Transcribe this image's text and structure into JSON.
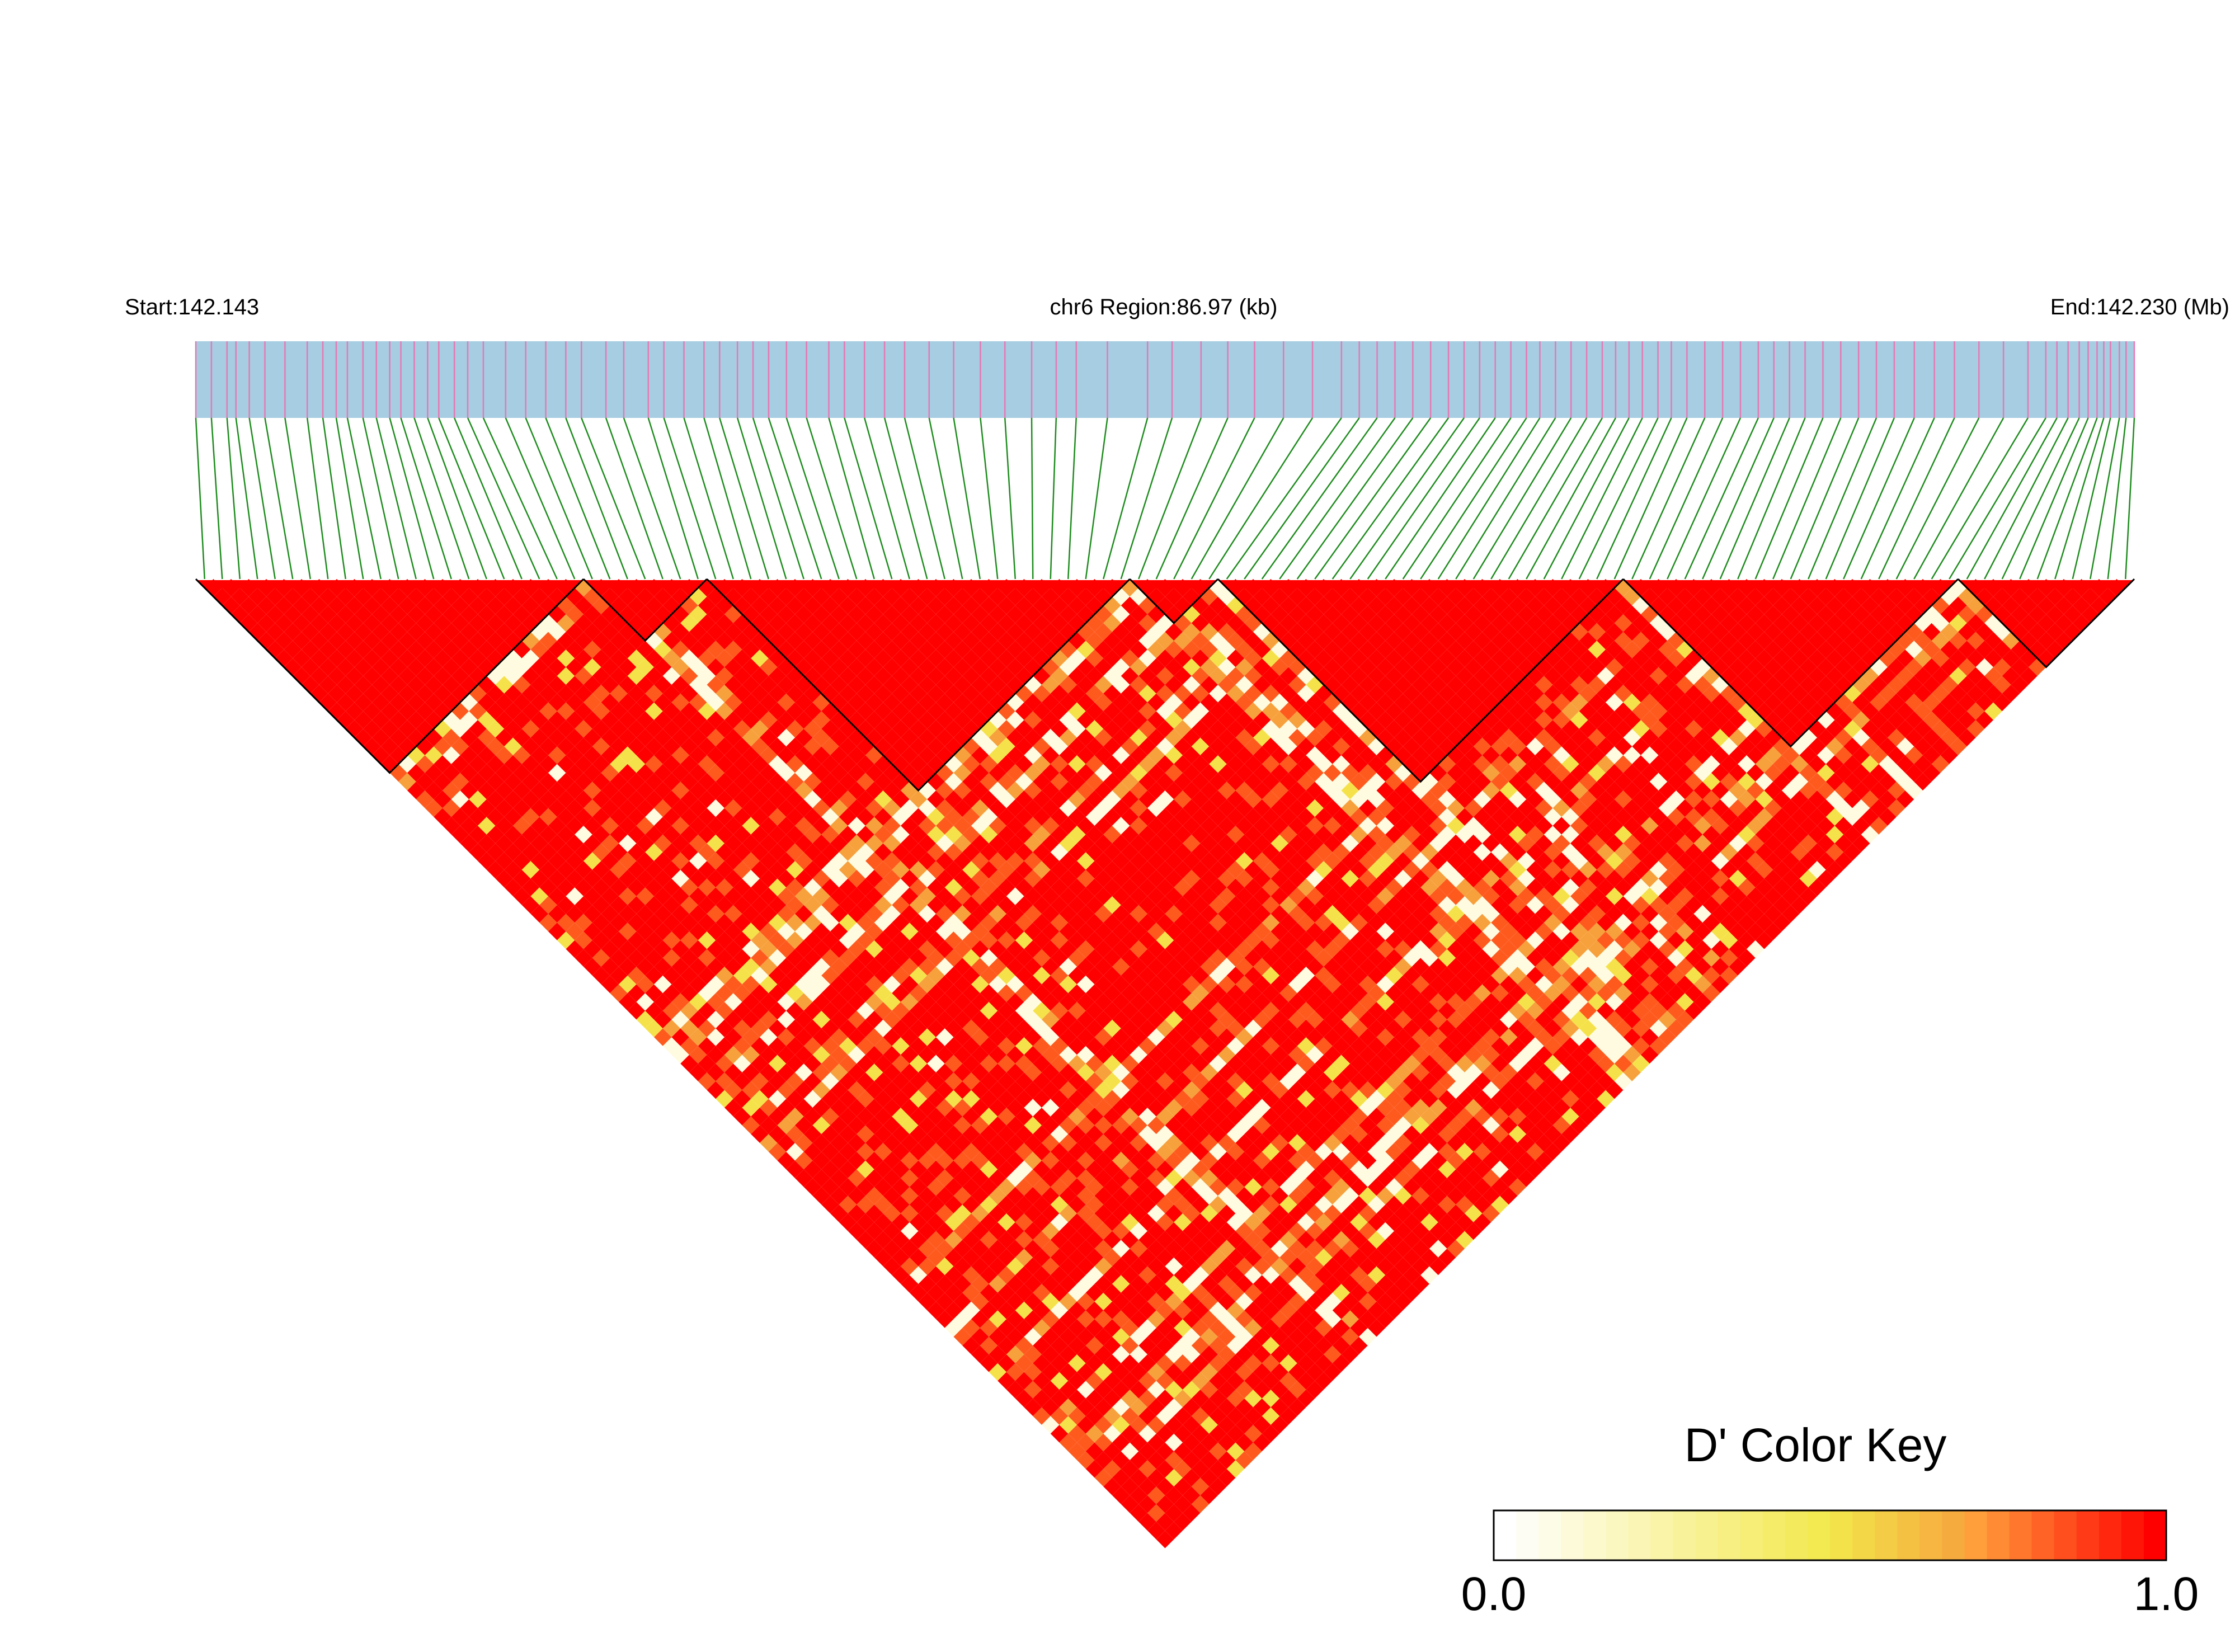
{
  "header": {
    "start_label": "Start:142.143",
    "region_label": "chr6 Region:86.97 (kb)",
    "end_label": "End:142.230 (Mb)"
  },
  "legend": {
    "title": "D' Color Key",
    "min_label": "0.0",
    "max_label": "1.0",
    "gradient_colors": [
      "#ffffff",
      "#f3e84a",
      "#f7a13d",
      "#ff0000"
    ]
  },
  "colors": {
    "track_bg": "#a6cde2",
    "snp_tick": "#e678b4",
    "connector": "#1e8c1e",
    "ld_high": "#ff0000",
    "ld_mid": "#ff5a1e",
    "ld_orange": "#f7a13d",
    "ld_yellow": "#f5e24a",
    "ld_white": "#fffbe0",
    "block_outline": "#000000"
  },
  "chart_data": {
    "type": "heatmap",
    "title": "",
    "chromosome": "chr6",
    "region_start_mb": 142.143,
    "region_end_mb": 142.23,
    "region_length_kb": 86.97,
    "n_snps": 110,
    "metric": "D'",
    "value_range": [
      0.0,
      1.0
    ],
    "haplotype_blocks_snp_index": [
      [
        0,
        21
      ],
      [
        22,
        28
      ],
      [
        29,
        52
      ],
      [
        53,
        57
      ],
      [
        58,
        80
      ],
      [
        81,
        99
      ],
      [
        100,
        109
      ]
    ],
    "snp_positions_kb": [
      0.0,
      0.7,
      1.4,
      1.8,
      2.4,
      3.1,
      4.0,
      5.0,
      5.7,
      6.3,
      6.8,
      7.5,
      8.1,
      8.7,
      9.2,
      9.8,
      10.4,
      10.9,
      11.6,
      12.2,
      12.9,
      13.9,
      14.8,
      15.7,
      16.6,
      17.3,
      18.4,
      19.2,
      20.3,
      21.0,
      21.9,
      22.8,
      23.5,
      24.3,
      25.0,
      25.7,
      26.5,
      27.4,
      28.4,
      29.1,
      30.0,
      30.9,
      31.8,
      32.9,
      34.0,
      35.2,
      36.3,
      37.5,
      38.6,
      39.5,
      40.9,
      42.7,
      43.8,
      45.1,
      46.3,
      47.5,
      48.8,
      50.1,
      51.4,
      52.2,
      53.0,
      53.8,
      54.6,
      55.4,
      56.2,
      56.9,
      57.6,
      58.3,
      59.0,
      59.7,
      60.3,
      61.0,
      61.7,
      62.4,
      63.1,
      63.7,
      64.3,
      64.9,
      65.6,
      66.2,
      66.9,
      67.7,
      68.5,
      69.3,
      70.1,
      70.8,
      71.5,
      72.2,
      73.0,
      73.8,
      74.6,
      75.4,
      76.2,
      77.1,
      78.0,
      78.9,
      80.0,
      81.1,
      82.2,
      83.0,
      83.5,
      84.0,
      84.5,
      84.9,
      85.3,
      85.6,
      85.9,
      86.3,
      86.6,
      86.97
    ]
  }
}
